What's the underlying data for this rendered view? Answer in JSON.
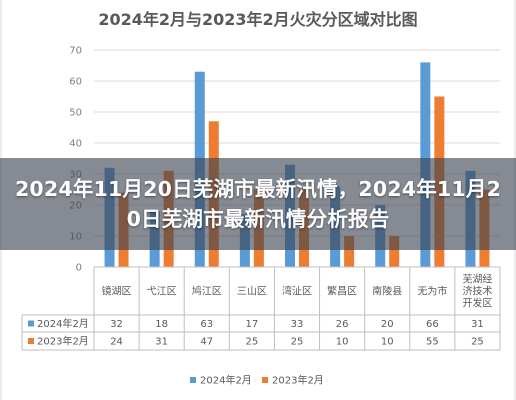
{
  "banner": {
    "headline": "2024年11月20日芜湖市最新汛情，2024年11月20日芜湖市最新汛情分析报告"
  },
  "colors": {
    "series_2024": "#5b9bd5",
    "series_2023": "#ed7d31",
    "gridline": "#d9d9d9",
    "background": "#ffffff"
  },
  "chart_data": {
    "type": "bar",
    "title": "2024年2月与2023年2月火灾分区域对比图",
    "categories": [
      "镜湖区",
      "弋江区",
      "鸠江区",
      "三山区",
      "湾沚区",
      "繁昌区",
      "南陵县",
      "无为市",
      "芜湖经济技术开发区"
    ],
    "category_lines": [
      [
        "镜湖区"
      ],
      [
        "弋江区"
      ],
      [
        "鸠江区"
      ],
      [
        "三山区"
      ],
      [
        "湾沚区"
      ],
      [
        "繁昌区"
      ],
      [
        "南陵县"
      ],
      [
        "无为市"
      ],
      [
        "芜湖经",
        "济技术",
        "开发区"
      ]
    ],
    "series": [
      {
        "name": "2024年2月",
        "values": [
          32,
          18,
          63,
          17,
          33,
          26,
          20,
          66,
          31
        ]
      },
      {
        "name": "2023年2月",
        "values": [
          24,
          31,
          47,
          25,
          25,
          10,
          10,
          55,
          25
        ]
      }
    ],
    "ylim": [
      0,
      70
    ],
    "yticks": [
      0,
      10,
      20,
      30,
      40,
      50,
      60,
      70
    ],
    "grid": true,
    "legend": "bottom",
    "data_table": true
  }
}
